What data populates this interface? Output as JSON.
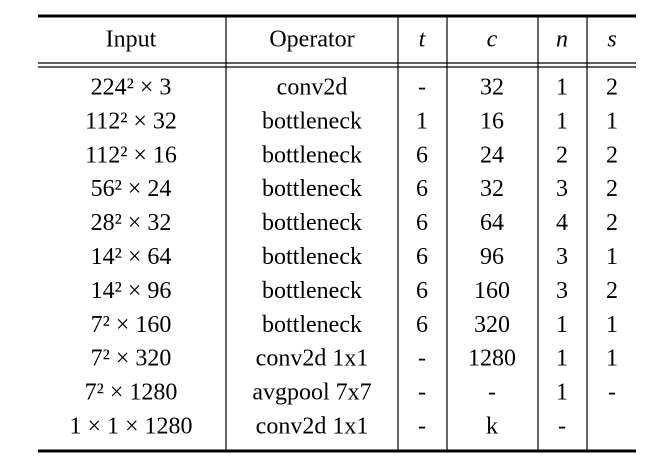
{
  "table": {
    "header": [
      "Input",
      "Operator",
      "t",
      "c",
      "n",
      "s"
    ],
    "rows": [
      [
        "224² × 3",
        "conv2d",
        "-",
        "32",
        "1",
        "2"
      ],
      [
        "112² × 32",
        "bottleneck",
        "1",
        "16",
        "1",
        "1"
      ],
      [
        "112² × 16",
        "bottleneck",
        "6",
        "24",
        "2",
        "2"
      ],
      [
        "56² × 24",
        "bottleneck",
        "6",
        "32",
        "3",
        "2"
      ],
      [
        "28² × 32",
        "bottleneck",
        "6",
        "64",
        "4",
        "2"
      ],
      [
        "14² × 64",
        "bottleneck",
        "6",
        "96",
        "3",
        "1"
      ],
      [
        "14² × 96",
        "bottleneck",
        "6",
        "160",
        "3",
        "2"
      ],
      [
        "7² × 160",
        "bottleneck",
        "6",
        "320",
        "1",
        "1"
      ],
      [
        "7² × 320",
        "conv2d 1x1",
        "-",
        "1280",
        "1",
        "1"
      ],
      [
        "7² × 1280",
        "avgpool 7x7",
        "-",
        "-",
        "1",
        "-"
      ],
      [
        "1 × 1 × 1280",
        "conv2d 1x1",
        "-",
        "k",
        "-",
        ""
      ]
    ]
  }
}
